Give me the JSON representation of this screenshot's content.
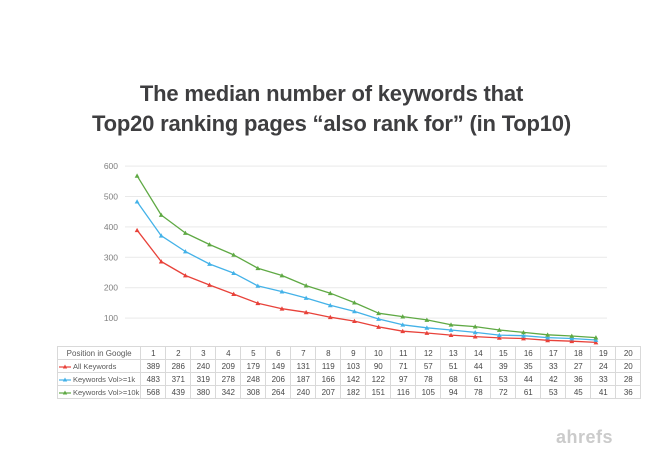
{
  "title": {
    "line1": "The median number of keywords that",
    "line2": "Top20 ranking pages “also rank for” (in Top10)"
  },
  "watermark": "ahrefs",
  "colors": {
    "grid": "#e9e9e9",
    "axis_text": "#7f7f7f",
    "table_border": "#d9d9d9",
    "title_text": "#3e3e40",
    "watermark_text": "#cbcbcb"
  },
  "chart_data": {
    "type": "line",
    "title": "The median number of keywords that Top20 ranking pages “also rank for” (in Top10)",
    "xlabel": "Position in Google",
    "ylabel": "",
    "x": [
      1,
      2,
      3,
      4,
      5,
      6,
      7,
      8,
      9,
      10,
      11,
      12,
      13,
      14,
      15,
      16,
      17,
      18,
      19,
      20
    ],
    "series": [
      {
        "name": "All Keywords",
        "color": "#e8423a",
        "marker": "triangle",
        "values": [
          389,
          286,
          240,
          209,
          179,
          149,
          131,
          119,
          103,
          90,
          71,
          57,
          51,
          44,
          39,
          35,
          33,
          27,
          24,
          20
        ]
      },
      {
        "name": "Keywords Vol>=1k",
        "color": "#44b2e8",
        "marker": "triangle",
        "values": [
          483,
          371,
          319,
          278,
          248,
          206,
          187,
          166,
          142,
          122,
          97,
          78,
          68,
          61,
          53,
          44,
          42,
          36,
          33,
          28
        ]
      },
      {
        "name": "Keywords Vol>=10k",
        "color": "#5fa944",
        "marker": "triangle",
        "values": [
          568,
          439,
          380,
          342,
          308,
          264,
          240,
          207,
          182,
          151,
          116,
          105,
          94,
          78,
          72,
          61,
          53,
          45,
          41,
          36
        ]
      }
    ],
    "ylim": [
      0,
      620
    ],
    "yticks": [
      100,
      200,
      300,
      400,
      500,
      600
    ],
    "grid": "horizontal",
    "legend_position": "table-first-column"
  }
}
